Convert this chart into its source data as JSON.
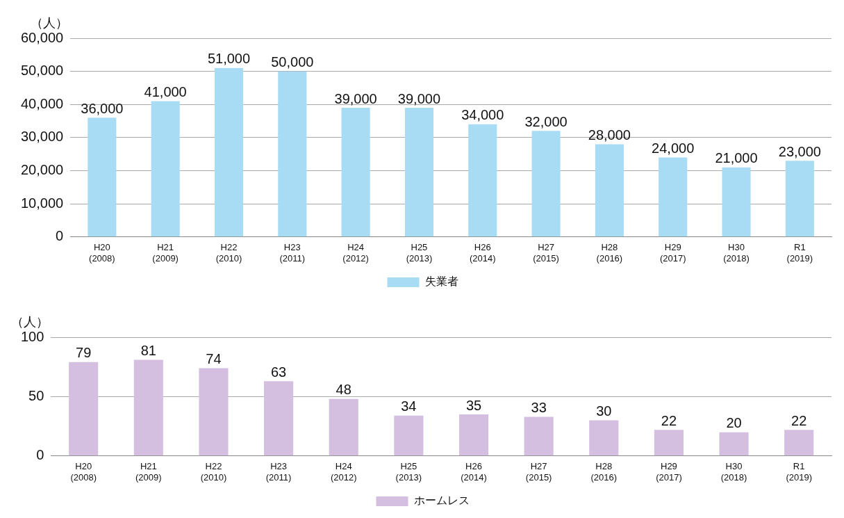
{
  "chart_data": [
    {
      "type": "bar",
      "ylabel": "（人）",
      "categories": [
        "H20\n(2008)",
        "H21\n(2009)",
        "H22\n(2010)",
        "H23\n(2011)",
        "H24\n(2012)",
        "H25\n(2013)",
        "H26\n(2014)",
        "H27\n(2015)",
        "H28\n(2016)",
        "H29\n(2017)",
        "H30\n(2018)",
        "R1\n(2019)"
      ],
      "series": [
        {
          "name": "失業者",
          "color": "#a8dcf5",
          "values": [
            36000,
            41000,
            51000,
            50000,
            39000,
            39000,
            34000,
            32000,
            28000,
            24000,
            21000,
            23000
          ],
          "value_labels": [
            "36,000",
            "41,000",
            "51,000",
            "50,000",
            "39,000",
            "39,000",
            "34,000",
            "32,000",
            "28,000",
            "24,000",
            "21,000",
            "23,000"
          ]
        }
      ],
      "ylim": [
        0,
        60000
      ],
      "yticks": [
        {
          "value": 0,
          "label": "0"
        },
        {
          "value": 10000,
          "label": "10,000"
        },
        {
          "value": 20000,
          "label": "20,000"
        },
        {
          "value": 30000,
          "label": "30,000"
        },
        {
          "value": 40000,
          "label": "40,000"
        },
        {
          "value": 50000,
          "label": "50,000"
        },
        {
          "value": 60000,
          "label": "60,000"
        }
      ],
      "grid": "y",
      "legend": "bottom"
    },
    {
      "type": "bar",
      "ylabel": "（人）",
      "categories": [
        "H20\n(2008)",
        "H21\n(2009)",
        "H22\n(2010)",
        "H23\n(2011)",
        "H24\n(2012)",
        "H25\n(2013)",
        "H26\n(2014)",
        "H27\n(2015)",
        "H28\n(2016)",
        "H29\n(2017)",
        "H30\n(2018)",
        "R1\n(2019)"
      ],
      "series": [
        {
          "name": "ホームレス",
          "color": "#d4bfe0",
          "values": [
            79,
            81,
            74,
            63,
            48,
            34,
            35,
            33,
            30,
            22,
            20,
            22
          ]
        }
      ],
      "ylim": [
        0,
        100
      ],
      "yticks": [
        0,
        50,
        100
      ],
      "grid": "y",
      "legend": "bottom",
      "data_labels": true
    }
  ]
}
